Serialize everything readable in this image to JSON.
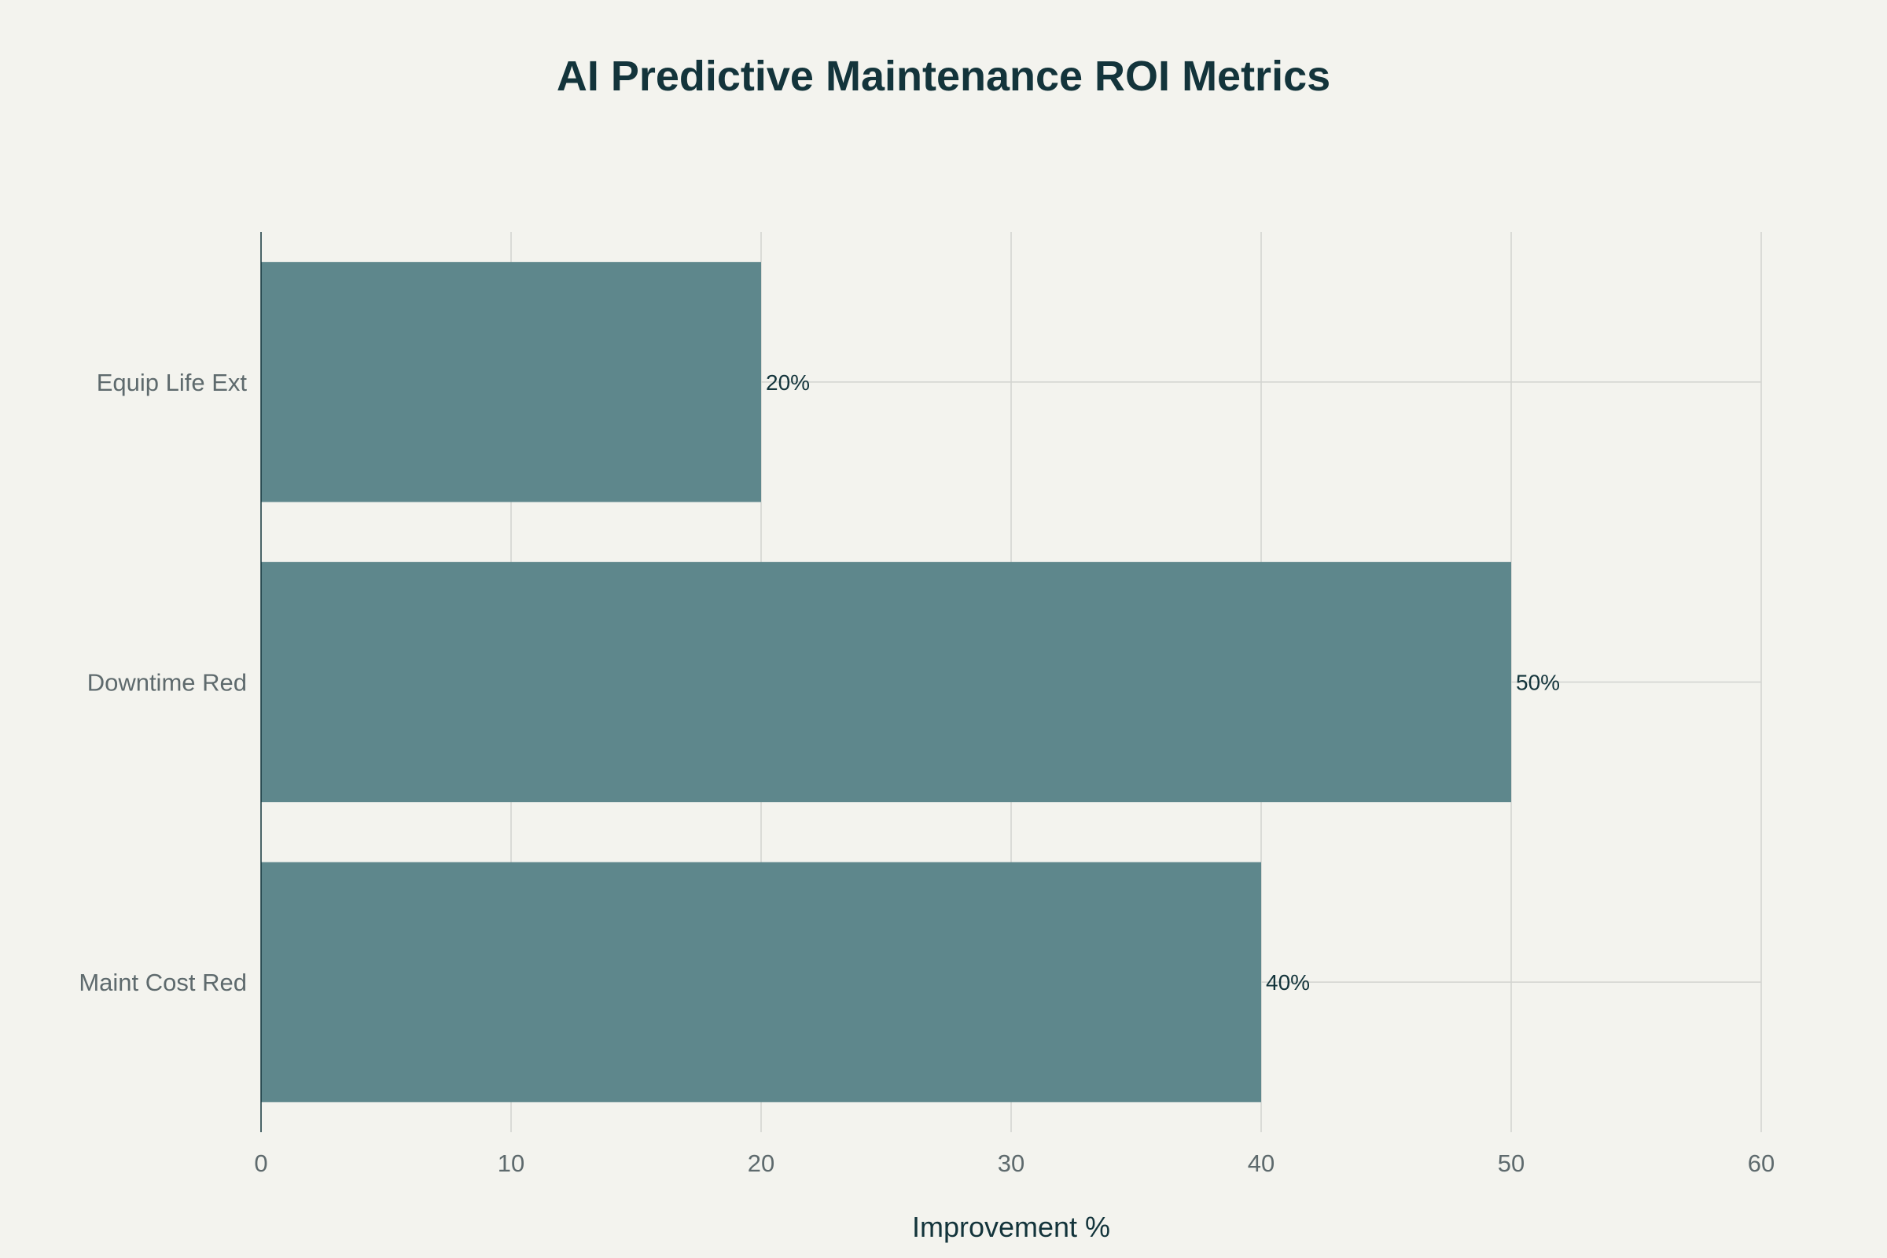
{
  "chart_data": {
    "type": "bar",
    "orientation": "horizontal",
    "title": "AI Predictive Maintenance ROI Metrics",
    "xlabel": "Improvement %",
    "ylabel": "",
    "categories": [
      "Maint Cost Red",
      "Downtime Red",
      "Equip Life Ext"
    ],
    "values": [
      40,
      50,
      20
    ],
    "data_labels": [
      "40%",
      "50%",
      "20%"
    ],
    "xlim": [
      0,
      60
    ],
    "xticks": [
      0,
      10,
      20,
      30,
      40,
      50,
      60
    ],
    "xtick_labels": [
      "0",
      "10",
      "20",
      "30",
      "40",
      "50",
      "60"
    ],
    "grid": true,
    "bar_color": "#5e878c",
    "text_color": "#13343b",
    "tick_color": "#5e6a6d",
    "background": "#f3f3ee"
  }
}
